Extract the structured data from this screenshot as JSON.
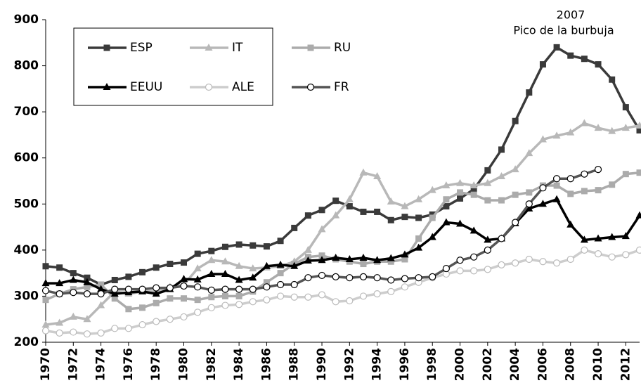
{
  "chart_data": {
    "type": "line",
    "annotations": [
      "2007",
      "Pico de la burbuja"
    ],
    "x": [
      1970,
      1971,
      1972,
      1973,
      1974,
      1975,
      1976,
      1977,
      1978,
      1979,
      1980,
      1981,
      1982,
      1983,
      1984,
      1985,
      1986,
      1987,
      1988,
      1989,
      1990,
      1991,
      1992,
      1993,
      1994,
      1995,
      1996,
      1997,
      1998,
      1999,
      2000,
      2001,
      2002,
      2003,
      2004,
      2005,
      2006,
      2007,
      2008,
      2009,
      2010,
      2011,
      2012,
      2013
    ],
    "xlim": [
      1970,
      2013
    ],
    "xticks": [
      1970,
      1972,
      1974,
      1976,
      1978,
      1980,
      1982,
      1984,
      1986,
      1988,
      1990,
      1992,
      1994,
      1996,
      1998,
      2000,
      2002,
      2004,
      2006,
      2008,
      2010,
      2012
    ],
    "ylim": [
      200,
      900
    ],
    "yticks": [
      200,
      300,
      400,
      500,
      600,
      700,
      800,
      900
    ],
    "grid": false,
    "legend": "top-left",
    "series": [
      {
        "name": "ESP",
        "color": "#3a3a3a",
        "marker": "square",
        "values": [
          365,
          362,
          350,
          340,
          325,
          335,
          342,
          352,
          362,
          370,
          373,
          392,
          398,
          407,
          412,
          410,
          408,
          420,
          448,
          475,
          487,
          507,
          495,
          483,
          483,
          465,
          472,
          470,
          477,
          495,
          512,
          532,
          573,
          618,
          680,
          742,
          803,
          840,
          822,
          815,
          803,
          770,
          710,
          660
        ]
      },
      {
        "name": "IT",
        "color": "#b8b8b8",
        "marker": "triangle",
        "values": [
          238,
          242,
          255,
          250,
          280,
          310,
          305,
          310,
          310,
          320,
          325,
          360,
          378,
          375,
          365,
          360,
          362,
          365,
          375,
          400,
          445,
          475,
          510,
          568,
          560,
          505,
          495,
          510,
          530,
          540,
          545,
          540,
          545,
          560,
          575,
          610,
          640,
          648,
          655,
          675,
          665,
          658,
          665,
          670
        ]
      },
      {
        "name": "RU",
        "color": "#ababab",
        "marker": "square",
        "values": [
          292,
          305,
          315,
          320,
          325,
          295,
          272,
          275,
          285,
          295,
          295,
          292,
          298,
          300,
          300,
          310,
          330,
          350,
          370,
          385,
          388,
          380,
          375,
          370,
          375,
          375,
          380,
          425,
          470,
          510,
          525,
          520,
          508,
          508,
          520,
          525,
          540,
          540,
          522,
          528,
          530,
          542,
          565,
          568
        ]
      },
      {
        "name": "EEUU",
        "color": "#000000",
        "marker": "triangle",
        "values": [
          328,
          328,
          335,
          330,
          315,
          305,
          308,
          310,
          305,
          315,
          337,
          336,
          348,
          348,
          335,
          340,
          365,
          368,
          365,
          377,
          378,
          383,
          380,
          383,
          378,
          382,
          390,
          405,
          428,
          460,
          457,
          442,
          422,
          425,
          458,
          490,
          500,
          510,
          455,
          422,
          425,
          428,
          430,
          475
        ]
      },
      {
        "name": "ALE",
        "color": "#cdcdcd",
        "marker": "circle-open",
        "values": [
          225,
          220,
          222,
          218,
          220,
          230,
          230,
          238,
          245,
          250,
          255,
          265,
          275,
          280,
          282,
          288,
          292,
          300,
          298,
          298,
          303,
          288,
          290,
          300,
          305,
          310,
          320,
          330,
          340,
          348,
          355,
          355,
          358,
          368,
          372,
          380,
          375,
          372,
          380,
          400,
          392,
          385,
          390,
          400
        ]
      },
      {
        "name": "FR",
        "color": "#555555",
        "marker": "circle-open",
        "values": [
          312,
          305,
          308,
          305,
          305,
          315,
          315,
          315,
          318,
          318,
          322,
          320,
          313,
          315,
          315,
          315,
          320,
          325,
          325,
          340,
          345,
          342,
          340,
          342,
          340,
          335,
          338,
          340,
          342,
          360,
          378,
          385,
          400,
          425,
          460,
          500,
          535,
          555,
          555,
          565,
          575,
          null,
          null,
          null
        ]
      }
    ]
  }
}
